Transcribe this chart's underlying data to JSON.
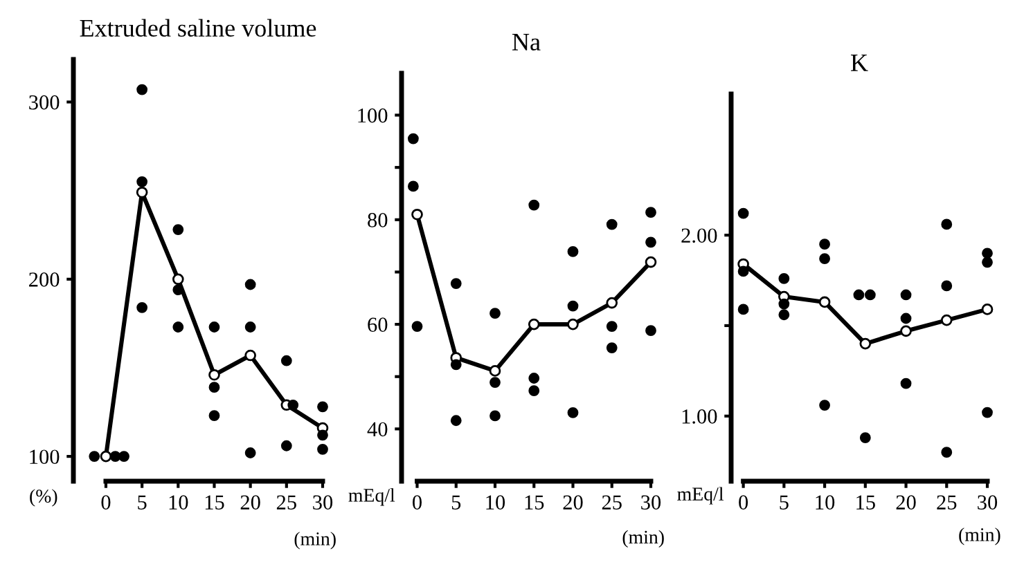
{
  "chart_data": [
    {
      "type": "line",
      "title": "Extruded saline volume",
      "xlabel": "(min)",
      "ylabel": "(%)",
      "xlim": [
        -4.5,
        30
      ],
      "xticks": [
        0,
        5,
        10,
        15,
        20,
        25,
        30
      ],
      "ylim": [
        86,
        324
      ],
      "yticks": [
        100,
        200,
        300
      ],
      "grid": false,
      "marker": "circle",
      "series": [
        {
          "color": "#000000",
          "x": [
            0,
            5,
            10,
            15,
            20,
            25,
            30
          ],
          "values": [
            100,
            249,
            200,
            146,
            157,
            129,
            116
          ]
        },
        {
          "type": "scatter",
          "color": "#000000",
          "x": [
            -1.6,
            1.3,
            2.5,
            5,
            5,
            5,
            10,
            10,
            10,
            15,
            15,
            15,
            20,
            20,
            20,
            25,
            25.9,
            25,
            30,
            30,
            30
          ],
          "values": [
            100,
            100,
            100,
            307,
            255,
            184,
            228,
            194,
            173,
            173,
            139,
            123,
            197,
            173,
            102,
            154,
            129,
            106,
            128,
            112,
            104
          ]
        }
      ]
    },
    {
      "type": "line",
      "title": "Na",
      "xlabel": "(min)",
      "ylabel": "mEq/l",
      "xlim": [
        -2,
        30
      ],
      "xticks": [
        0,
        5,
        10,
        15,
        20,
        25,
        30
      ],
      "ylim": [
        30,
        108
      ],
      "yticks": [
        40,
        {
          "value": 50,
          "label": null
        },
        60,
        {
          "value": 70,
          "label": null
        },
        80,
        {
          "value": 90,
          "label": null
        },
        100
      ],
      "grid": false,
      "marker": "circle",
      "series": [
        {
          "color": "#000000",
          "x": [
            0,
            5,
            10,
            15,
            20,
            25,
            30
          ],
          "values": [
            81,
            53.6,
            51.1,
            60,
            60,
            64.1,
            71.9
          ]
        },
        {
          "type": "scatter",
          "color": "#000000",
          "x": [
            -0.5,
            -0.5,
            0,
            5,
            5,
            5,
            10,
            10,
            10,
            15,
            15,
            15,
            20,
            20,
            20,
            25,
            25,
            25,
            30,
            30,
            30
          ],
          "values": [
            95.5,
            86.4,
            59.6,
            67.8,
            52.3,
            41.6,
            62.1,
            48.9,
            42.5,
            82.8,
            49.7,
            47.3,
            73.9,
            63.5,
            43.1,
            79.1,
            59.6,
            55.5,
            81.4,
            75.7,
            58.8
          ]
        }
      ]
    },
    {
      "type": "line",
      "title": "K",
      "xlabel": "(min)",
      "ylabel": "mEq/l",
      "xlim": [
        -1.5,
        30
      ],
      "xticks": [
        0,
        5,
        10,
        15,
        20,
        25,
        30
      ],
      "ylim": [
        0.64,
        2.78
      ],
      "yticks": [
        {
          "value": 1.0,
          "label": "1.00"
        },
        {
          "value": 1.5,
          "label": null
        },
        {
          "value": 2.0,
          "label": "2.00"
        }
      ],
      "grid": false,
      "marker": "circle",
      "series": [
        {
          "color": "#000000",
          "x": [
            0,
            5,
            10,
            15,
            20,
            25,
            30
          ],
          "values": [
            1.84,
            1.66,
            1.63,
            1.4,
            1.47,
            1.53,
            1.59
          ]
        },
        {
          "type": "scatter",
          "color": "#000000",
          "x": [
            0,
            0,
            0,
            5,
            5,
            5,
            10,
            10,
            10,
            14.2,
            15.6,
            15,
            20,
            20,
            20,
            25,
            25,
            25,
            30,
            30,
            30
          ],
          "values": [
            2.12,
            1.8,
            1.59,
            1.76,
            1.62,
            1.56,
            1.95,
            1.87,
            1.06,
            1.67,
            1.67,
            0.88,
            1.67,
            1.54,
            1.18,
            2.06,
            1.72,
            0.8,
            1.9,
            1.85,
            1.02
          ]
        }
      ]
    }
  ]
}
